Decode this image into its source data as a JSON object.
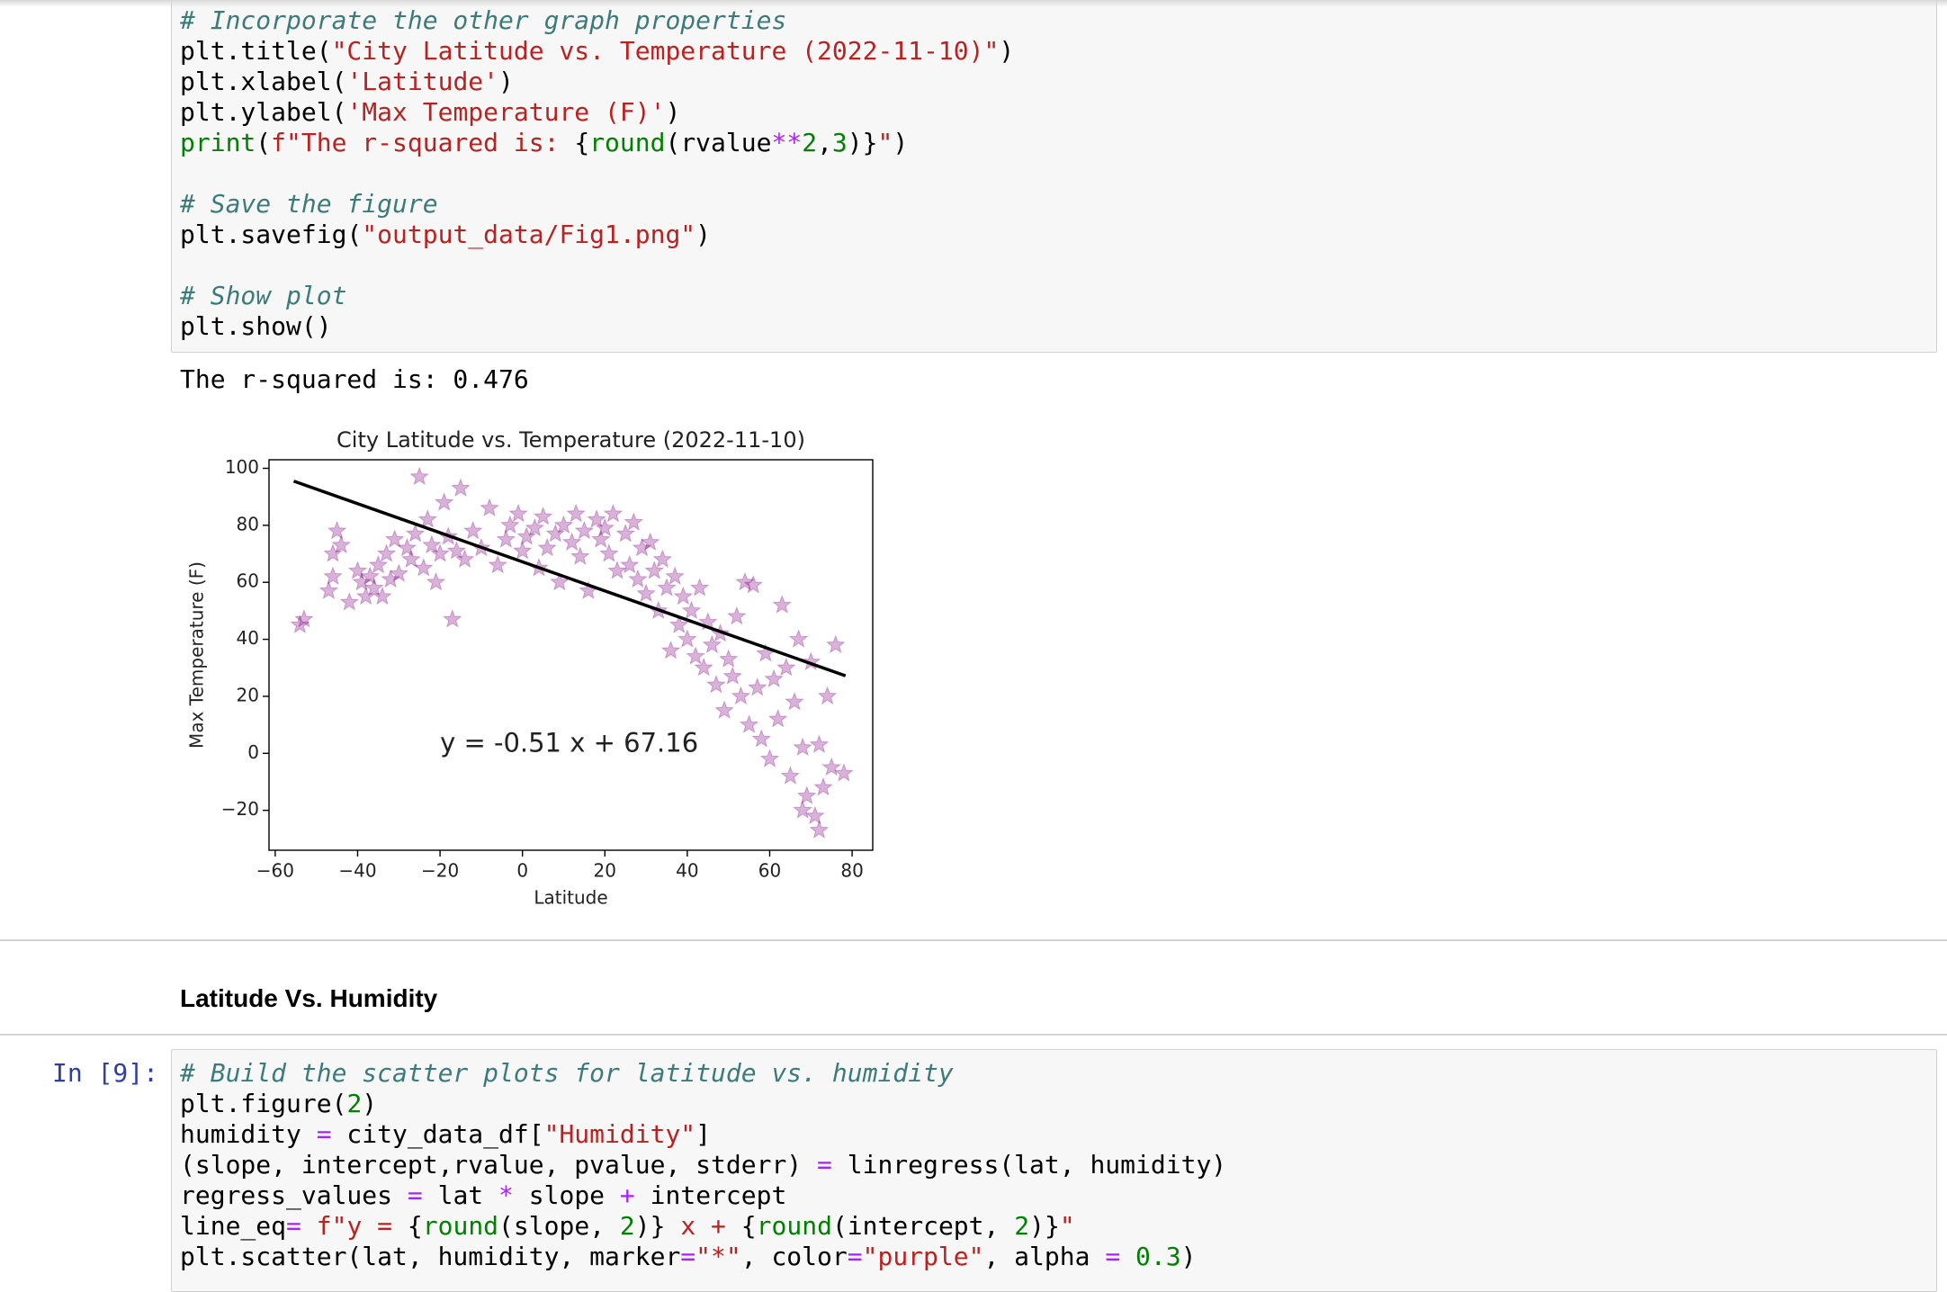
{
  "syntax": {
    "t": "#000000",
    "c": "#3d7b7b",
    "s": "#ba2121",
    "g": "#008000",
    "o": "#aa22ff"
  },
  "cells": [
    {
      "code": [
        [
          [
            "# Incorporate the other graph properties",
            "c"
          ]
        ],
        [
          [
            "plt.title(",
            "t"
          ],
          [
            "\"City Latitude vs. Temperature (2022-11-10)\"",
            "s"
          ],
          [
            ")",
            "t"
          ]
        ],
        [
          [
            "plt.xlabel(",
            "t"
          ],
          [
            "'Latitude'",
            "s"
          ],
          [
            ")",
            "t"
          ]
        ],
        [
          [
            "plt.ylabel(",
            "t"
          ],
          [
            "'Max Temperature (F)'",
            "s"
          ],
          [
            ")",
            "t"
          ]
        ],
        [
          [
            "print",
            "g"
          ],
          [
            "(",
            "t"
          ],
          [
            "f\"The r-squared is: ",
            "s"
          ],
          [
            "{",
            "t"
          ],
          [
            "round",
            "g"
          ],
          [
            "(rvalue",
            "t"
          ],
          [
            "**",
            "o"
          ],
          [
            "2",
            "g"
          ],
          [
            ",",
            "t"
          ],
          [
            "3",
            "g"
          ],
          [
            ")}",
            "t"
          ],
          [
            "\"",
            "s"
          ],
          [
            ")",
            "t"
          ]
        ],
        [],
        [
          [
            "# Save the figure",
            "c"
          ]
        ],
        [
          [
            "plt.savefig(",
            "t"
          ],
          [
            "\"output_data/Fig1.png\"",
            "s"
          ],
          [
            ")",
            "t"
          ]
        ],
        [],
        [
          [
            "# Show plot",
            "c"
          ]
        ],
        [
          [
            "plt.show()",
            "t"
          ]
        ]
      ]
    },
    {
      "prompt": "In [9]:",
      "code": [
        [
          [
            "# Build the scatter plots for latitude vs. humidity",
            "c"
          ]
        ],
        [
          [
            "plt.figure(",
            "t"
          ],
          [
            "2",
            "g"
          ],
          [
            ")",
            "t"
          ]
        ],
        [
          [
            "humidity ",
            "t"
          ],
          [
            "=",
            "o"
          ],
          [
            " city_data_df[",
            "t"
          ],
          [
            "\"Humidity\"",
            "s"
          ],
          [
            "]",
            "t"
          ]
        ],
        [
          [
            "(slope, intercept,rvalue, pvalue, stderr) ",
            "t"
          ],
          [
            "=",
            "o"
          ],
          [
            " linregress(lat, humidity)",
            "t"
          ]
        ],
        [
          [
            "regress_values ",
            "t"
          ],
          [
            "=",
            "o"
          ],
          [
            " lat ",
            "t"
          ],
          [
            "*",
            "o"
          ],
          [
            " slope ",
            "t"
          ],
          [
            "+",
            "o"
          ],
          [
            " intercept",
            "t"
          ]
        ],
        [
          [
            "line_eq",
            "t"
          ],
          [
            "=",
            "o"
          ],
          [
            " f\"y = ",
            "s"
          ],
          [
            "{",
            "t"
          ],
          [
            "round",
            "g"
          ],
          [
            "(slope, ",
            "t"
          ],
          [
            "2",
            "g"
          ],
          [
            ")}",
            "t"
          ],
          [
            " x + ",
            "s"
          ],
          [
            "{",
            "t"
          ],
          [
            "round",
            "g"
          ],
          [
            "(intercept, ",
            "t"
          ],
          [
            "2",
            "g"
          ],
          [
            ")}",
            "t"
          ],
          [
            "\"",
            "s"
          ]
        ],
        [
          [
            "plt.scatter(lat, humidity, marker",
            "t"
          ],
          [
            "=",
            "o"
          ],
          [
            "\"*\"",
            "s"
          ],
          [
            ", color",
            "t"
          ],
          [
            "=",
            "o"
          ],
          [
            "\"purple\"",
            "s"
          ],
          [
            ", alpha ",
            "t"
          ],
          [
            "=",
            "o"
          ],
          [
            " ",
            "t"
          ],
          [
            "0.3",
            "g"
          ],
          [
            ")",
            "t"
          ]
        ]
      ]
    }
  ],
  "output_text": "The r-squared is: 0.476",
  "markdown": {
    "heading": "Latitude Vs. Humidity"
  },
  "chart_data": {
    "type": "scatter",
    "title": "City Latitude vs. Temperature (2022-11-10)",
    "x_label": "Latitude",
    "y_label": "Max Temperature (F)",
    "annotation": "y = -0.51 x + 67.16",
    "color": "purple",
    "alpha": 0.3,
    "marker": "star",
    "xlim": [
      -61.5,
      85
    ],
    "ylim": [
      -34,
      103
    ],
    "xticks": [
      {
        "value": -60,
        "label": "−60"
      },
      {
        "value": -40,
        "label": "−40"
      },
      {
        "value": -20,
        "label": "−20"
      },
      0,
      20,
      40,
      60,
      80
    ],
    "yticks": [
      {
        "value": -20,
        "label": "−20"
      },
      0,
      20,
      40,
      60,
      80,
      100
    ],
    "x": [
      -54,
      -53,
      -46,
      -46,
      -47,
      -45,
      -44,
      -42,
      -40,
      -39,
      -38,
      -37,
      -36,
      -35,
      -34,
      -33,
      -32,
      -31,
      -30,
      -28,
      -27,
      -26,
      -25,
      -24,
      -23,
      -22,
      -21,
      -20,
      -19,
      -18,
      -17,
      -16,
      -15,
      -14,
      -12,
      -10,
      -8,
      -6,
      -4,
      -3,
      -1,
      0,
      1,
      3,
      4,
      5,
      6,
      8,
      9,
      10,
      12,
      13,
      14,
      15,
      16,
      18,
      19,
      20,
      21,
      22,
      23,
      25,
      26,
      27,
      28,
      29,
      30,
      31,
      32,
      33,
      34,
      35,
      36,
      37,
      38,
      39,
      40,
      41,
      42,
      43,
      44,
      45,
      46,
      47,
      48,
      49,
      50,
      51,
      52,
      53,
      54,
      55,
      56,
      57,
      58,
      59,
      60,
      61,
      62,
      63,
      64,
      65,
      66,
      67,
      68,
      69,
      70,
      71,
      72,
      73,
      74,
      75,
      76,
      78,
      72,
      68
    ],
    "values": [
      45,
      47,
      62,
      70,
      57,
      78,
      73,
      53,
      64,
      60,
      55,
      62,
      58,
      66,
      55,
      70,
      61,
      75,
      63,
      72,
      68,
      77,
      97,
      65,
      82,
      73,
      60,
      70,
      88,
      76,
      47,
      71,
      93,
      68,
      78,
      72,
      86,
      66,
      75,
      80,
      84,
      71,
      76,
      79,
      65,
      83,
      72,
      77,
      60,
      80,
      74,
      84,
      69,
      78,
      57,
      82,
      75,
      79,
      70,
      84,
      64,
      77,
      66,
      81,
      61,
      72,
      56,
      74,
      64,
      50,
      68,
      58,
      36,
      62,
      45,
      55,
      40,
      50,
      34,
      58,
      30,
      46,
      38,
      24,
      42,
      15,
      33,
      27,
      48,
      20,
      60,
      10,
      59,
      23,
      5,
      35,
      -2,
      26,
      12,
      52,
      30,
      -8,
      18,
      40,
      2,
      -15,
      32,
      -22,
      3,
      -12,
      20,
      -5,
      38,
      -7,
      -27,
      -20
    ],
    "fit": {
      "x": [
        -55.5,
        78.4
      ],
      "values": [
        95.5,
        27.2
      ],
      "color": "black"
    }
  }
}
